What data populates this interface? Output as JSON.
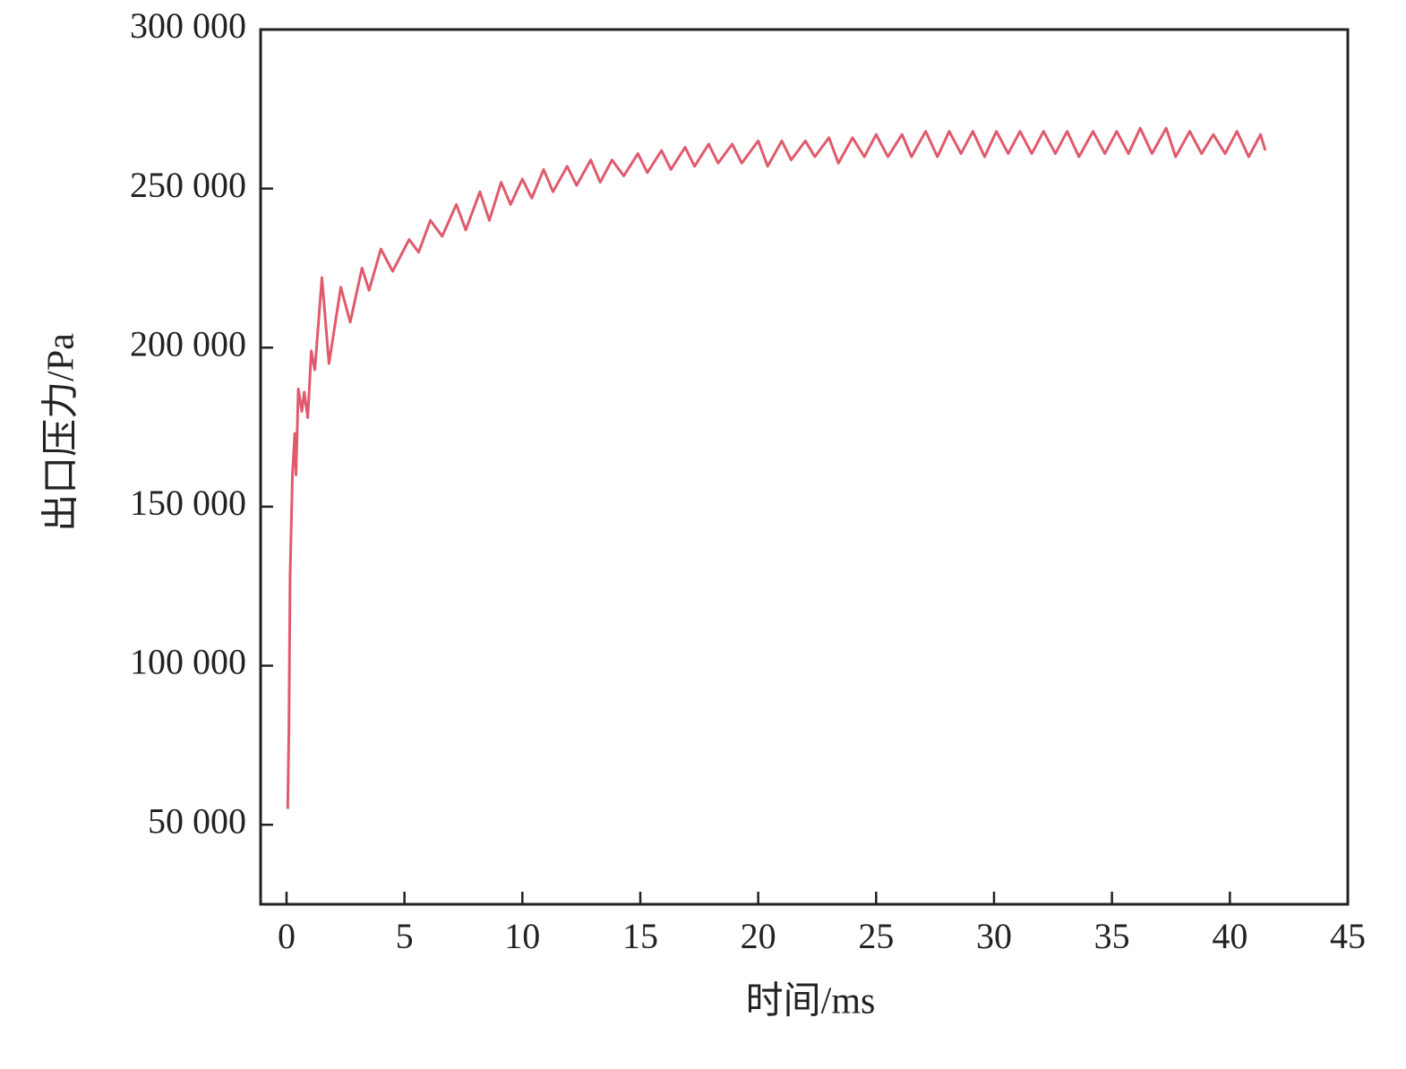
{
  "chart_data": {
    "type": "line",
    "x_label": "时间/ms",
    "y_label": "出口压力/Pa",
    "xlim": [
      -1.1,
      45
    ],
    "ylim": [
      25000,
      300000
    ],
    "xticks": [
      0,
      5,
      10,
      15,
      20,
      25,
      30,
      35,
      40,
      45
    ],
    "yticks": [
      {
        "value": 50000,
        "label": "50 000"
      },
      {
        "value": 100000,
        "label": "100 000"
      },
      {
        "value": 150000,
        "label": "150 000"
      },
      {
        "value": 200000,
        "label": "200 000"
      },
      {
        "value": 250000,
        "label": "250 000"
      },
      {
        "value": 300000,
        "label": "300 000"
      }
    ],
    "grid": false,
    "series": [
      {
        "color": "#e05a6c",
        "x": [
          0.05,
          0.1,
          0.15,
          0.25,
          0.35,
          0.4,
          0.5,
          0.65,
          0.75,
          0.9,
          1.05,
          1.2,
          1.5,
          1.8,
          2.3,
          2.7,
          3.2,
          3.5,
          4.0,
          4.5,
          5.2,
          5.6,
          6.1,
          6.6,
          7.2,
          7.6,
          8.2,
          8.6,
          9.1,
          9.5,
          10.0,
          10.4,
          10.9,
          11.3,
          11.9,
          12.3,
          12.9,
          13.3,
          13.8,
          14.3,
          14.9,
          15.3,
          15.9,
          16.3,
          16.9,
          17.3,
          17.9,
          18.3,
          18.9,
          19.3,
          20.0,
          20.4,
          21.0,
          21.4,
          22.0,
          22.4,
          23.0,
          23.4,
          24.0,
          24.5,
          25.0,
          25.5,
          26.1,
          26.5,
          27.1,
          27.6,
          28.1,
          28.6,
          29.1,
          29.6,
          30.1,
          30.6,
          31.1,
          31.6,
          32.1,
          32.6,
          33.1,
          33.6,
          34.2,
          34.7,
          35.2,
          35.7,
          36.2,
          36.7,
          37.3,
          37.7,
          38.3,
          38.8,
          39.3,
          39.8,
          40.3,
          40.8,
          41.3,
          41.5
        ],
        "values": [
          55000,
          80000,
          128000,
          160000,
          173000,
          160000,
          187000,
          180000,
          186000,
          178000,
          199000,
          193000,
          222000,
          195000,
          219000,
          208000,
          225000,
          218000,
          231000,
          224000,
          234000,
          230000,
          240000,
          235000,
          245000,
          237000,
          249000,
          240000,
          252000,
          245000,
          253000,
          247000,
          256000,
          249000,
          257000,
          251000,
          259000,
          252000,
          259000,
          254000,
          261000,
          255000,
          262000,
          256000,
          263000,
          257000,
          264000,
          258000,
          264000,
          258000,
          265000,
          257000,
          265000,
          259000,
          265000,
          260000,
          266000,
          258000,
          266000,
          260000,
          267000,
          260000,
          267000,
          260000,
          268000,
          260000,
          268000,
          261000,
          268000,
          260000,
          268000,
          261000,
          268000,
          261000,
          268000,
          261000,
          268000,
          260000,
          268000,
          261000,
          268000,
          261000,
          269000,
          261000,
          269000,
          260000,
          268000,
          261000,
          267000,
          261000,
          268000,
          260000,
          267000,
          262000
        ]
      }
    ]
  }
}
